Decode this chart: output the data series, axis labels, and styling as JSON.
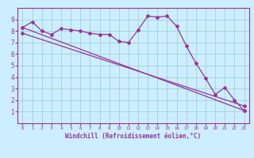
{
  "bg_color": "#cceeff",
  "line_color": "#993399",
  "grid_color": "#99cccc",
  "xlabel": "Windchill (Refroidissement éolien,°C)",
  "ylim": [
    0,
    10
  ],
  "xlim": [
    -0.5,
    23.5
  ],
  "yticks": [
    1,
    2,
    3,
    4,
    5,
    6,
    7,
    8,
    9
  ],
  "xticks": [
    0,
    1,
    2,
    3,
    4,
    5,
    6,
    7,
    8,
    9,
    10,
    11,
    12,
    13,
    14,
    15,
    16,
    17,
    18,
    19,
    20,
    21,
    22,
    23
  ],
  "series1_x": [
    0,
    1,
    2,
    3,
    4,
    5,
    6,
    7,
    8,
    9,
    10,
    11,
    12,
    13,
    14,
    15,
    16,
    17,
    18,
    19,
    20,
    21,
    22,
    23
  ],
  "series1_y": [
    8.3,
    8.8,
    8.0,
    7.7,
    8.2,
    8.1,
    8.0,
    7.8,
    7.7,
    7.7,
    7.1,
    7.0,
    8.1,
    9.3,
    9.2,
    9.3,
    8.4,
    6.7,
    5.2,
    3.9,
    2.5,
    3.1,
    2.0,
    1.1
  ],
  "series2_x": [
    0,
    23
  ],
  "series2_y": [
    8.3,
    1.1
  ],
  "series3_x": [
    0,
    23
  ],
  "series3_y": [
    7.8,
    1.5
  ]
}
